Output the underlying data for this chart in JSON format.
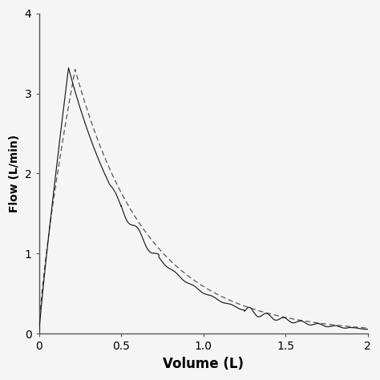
{
  "title": "",
  "xlabel": "Volume (L)",
  "ylabel": "Flow (L/min)",
  "xlim": [
    0,
    2
  ],
  "ylim": [
    0,
    4
  ],
  "xticks": [
    0,
    0.5,
    1.0,
    1.5,
    2
  ],
  "yticks": [
    0,
    1,
    2,
    3,
    4
  ],
  "xtick_labels": [
    "0",
    "0.5",
    "1.0",
    "1.5",
    "2"
  ],
  "ytick_labels": [
    "0",
    "1",
    "2",
    "3",
    "4"
  ],
  "background_color": "#f5f5f5",
  "line_color": "#1a1a1a",
  "dashed_color": "#555555",
  "xlabel_fontsize": 12,
  "ylabel_fontsize": 10,
  "tick_fontsize": 10,
  "peak_volume": 0.18,
  "peak_flow": 3.32
}
